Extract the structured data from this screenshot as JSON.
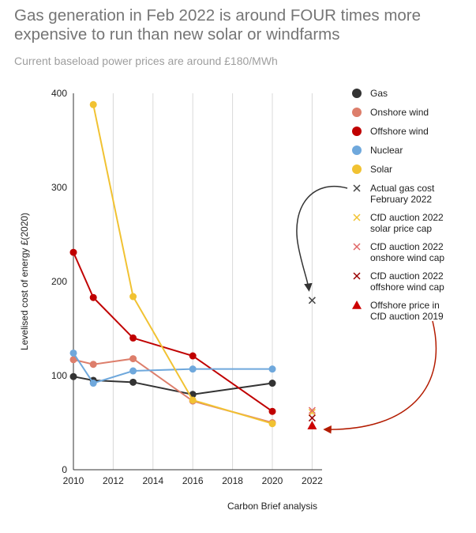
{
  "title": "Gas generation in Feb 2022 is around FOUR times more expensive to run than new solar or windfarms",
  "subtitle": "Current baseload power prices are around £180/MWh",
  "source": "Carbon Brief analysis",
  "chart_data": {
    "type": "line",
    "ylabel": "Levelised cost of energy £(2020)",
    "xlabel": "",
    "xlim": [
      2010,
      2022.5
    ],
    "ylim": [
      0,
      400
    ],
    "xticks": [
      2010,
      2012,
      2014,
      2016,
      2018,
      2020,
      2022
    ],
    "yticks": [
      0,
      100,
      200,
      300,
      400
    ],
    "grid": "vertical",
    "legend_position": "right",
    "series": [
      {
        "name": "Gas",
        "color": "#333333",
        "x": [
          2010,
          2011,
          2013,
          2016,
          2020
        ],
        "values": [
          99,
          95,
          93,
          80,
          92
        ]
      },
      {
        "name": "Onshore wind",
        "color": "#dd7e6b",
        "x": [
          2010,
          2011,
          2013,
          2016,
          2020
        ],
        "values": [
          117,
          112,
          118,
          73,
          50
        ]
      },
      {
        "name": "Offshore wind",
        "color": "#c00000",
        "x": [
          2010,
          2011,
          2013,
          2016,
          2020
        ],
        "values": [
          231,
          183,
          140,
          121,
          62
        ]
      },
      {
        "name": "Nuclear",
        "color": "#6fa8dc",
        "x": [
          2010,
          2011,
          2013,
          2016,
          2020
        ],
        "values": [
          124,
          92,
          105,
          107,
          107
        ]
      },
      {
        "name": "Solar",
        "color": "#f1c232",
        "x": [
          2011,
          2013,
          2016,
          2020
        ],
        "values": [
          388,
          184,
          74,
          49
        ]
      }
    ],
    "points": [
      {
        "name": "Actual gas cost February 2022",
        "lines": [
          "Actual gas cost",
          "February 2022"
        ],
        "marker": "x",
        "color": "#444444",
        "x": 2022,
        "y": 180
      },
      {
        "name": "CfD auction 2022 solar price cap",
        "lines": [
          "CfD auction 2022",
          "solar price cap"
        ],
        "marker": "x",
        "color": "#f1c232",
        "x": 2022,
        "y": 61
      },
      {
        "name": "CfD auction 2022 onshore wind cap",
        "lines": [
          "CfD auction 2022",
          "onshore wind cap"
        ],
        "marker": "x",
        "color": "#e06666",
        "x": 2022,
        "y": 63
      },
      {
        "name": "CfD auction 2022 offshore wind cap",
        "lines": [
          "CfD auction 2022",
          "offshore wind cap"
        ],
        "marker": "x",
        "color": "#990000",
        "x": 2022,
        "y": 55
      },
      {
        "name": "Offshore price in CfD auction 2019",
        "lines": [
          "Offshore price in",
          "CfD auction 2019"
        ],
        "marker": "triangle",
        "color": "#cc0000",
        "x": 2022,
        "y": 47
      }
    ]
  }
}
